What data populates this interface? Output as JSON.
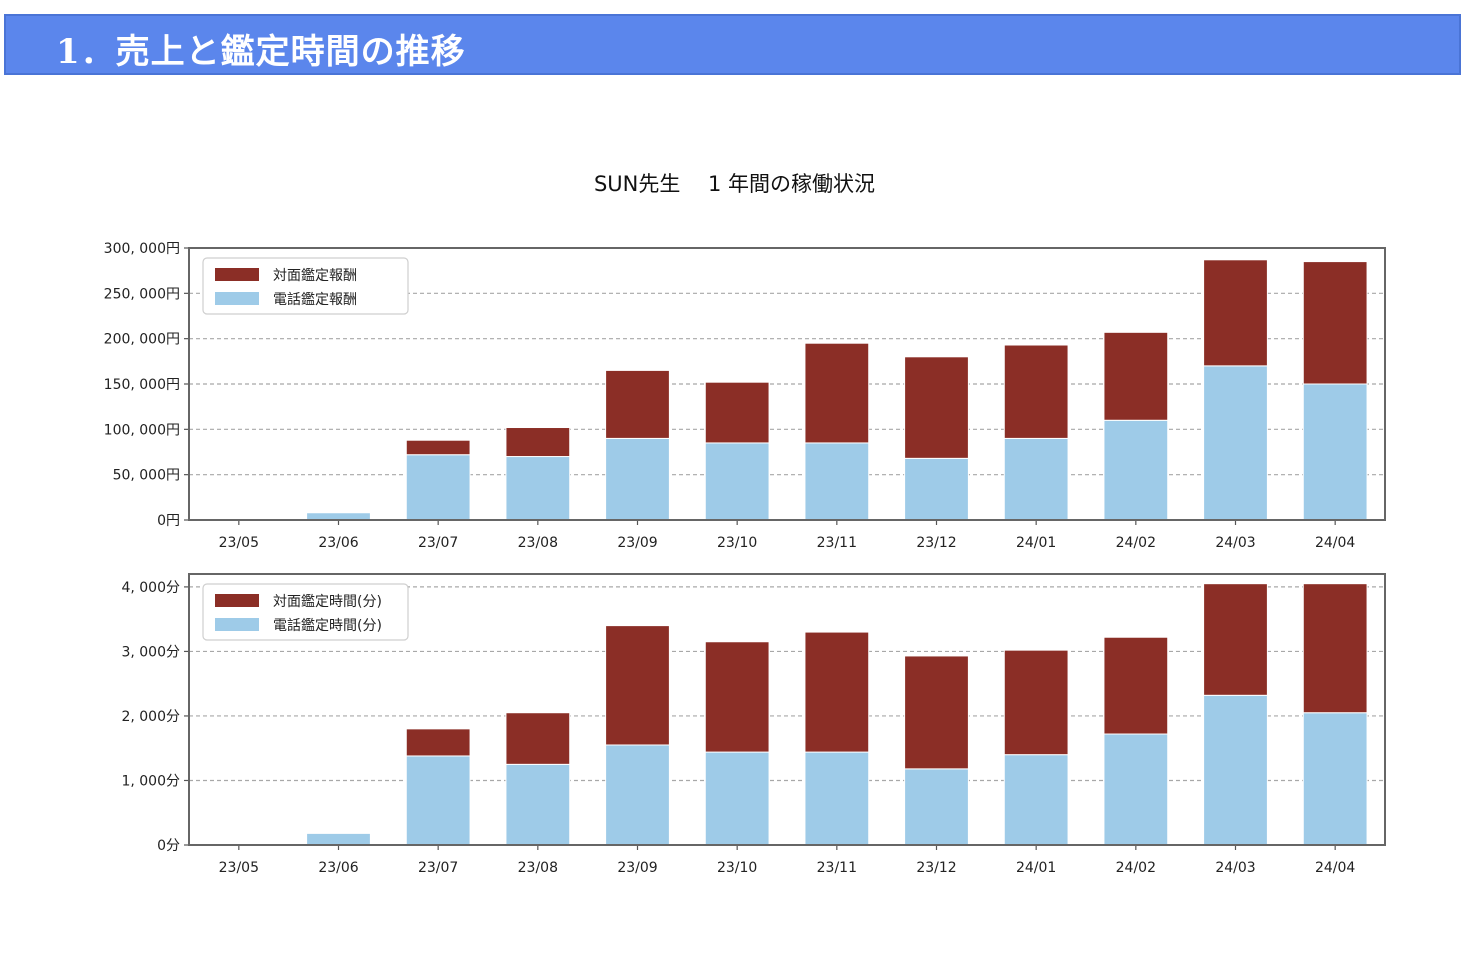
{
  "header": {
    "title": "1．売上と鑑定時間の推移"
  },
  "figure": {
    "title": "SUN先生　 1 年間の稼働状況"
  },
  "colors": {
    "face": "#8b2e26",
    "phone": "#9ecbe8",
    "banner": "#5b86ec"
  },
  "chart_data": [
    {
      "type": "bar",
      "stacked": true,
      "title": "",
      "xlabel": "",
      "ylabel": "",
      "categories": [
        "23/05",
        "23/06",
        "23/07",
        "23/08",
        "23/09",
        "23/10",
        "23/11",
        "23/12",
        "24/01",
        "24/02",
        "24/03",
        "24/04"
      ],
      "series": [
        {
          "name": "電話鑑定報酬",
          "color": "#9ecbe8",
          "values": [
            0,
            8000,
            72000,
            70000,
            90000,
            85000,
            85000,
            68000,
            90000,
            110000,
            170000,
            150000
          ]
        },
        {
          "name": "対面鑑定報酬",
          "color": "#8b2e26",
          "values": [
            0,
            0,
            16000,
            32000,
            75000,
            67000,
            110000,
            112000,
            103000,
            97000,
            117000,
            135000
          ]
        }
      ],
      "ylim": [
        0,
        300000
      ],
      "yticks": [
        "0円",
        "50, 000円",
        "100, 000円",
        "150, 000円",
        "200, 000円",
        "250, 000円",
        "300, 000円"
      ],
      "ytick_values": [
        0,
        50000,
        100000,
        150000,
        200000,
        250000,
        300000
      ],
      "legend_position": "upper-left",
      "legend_order": [
        "対面鑑定報酬",
        "電話鑑定報酬"
      ],
      "grid": "horizontal-dashed"
    },
    {
      "type": "bar",
      "stacked": true,
      "title": "",
      "xlabel": "",
      "ylabel": "",
      "categories": [
        "23/05",
        "23/06",
        "23/07",
        "23/08",
        "23/09",
        "23/10",
        "23/11",
        "23/12",
        "24/01",
        "24/02",
        "24/03",
        "24/04"
      ],
      "series": [
        {
          "name": "電話鑑定時間(分)",
          "color": "#9ecbe8",
          "values": [
            0,
            180,
            1380,
            1250,
            1550,
            1440,
            1440,
            1180,
            1400,
            1720,
            2320,
            2050
          ]
        },
        {
          "name": "対面鑑定時間(分)",
          "color": "#8b2e26",
          "values": [
            0,
            0,
            420,
            800,
            1850,
            1710,
            1860,
            1750,
            1620,
            1500,
            1730,
            2000
          ]
        }
      ],
      "ylim": [
        0,
        4200
      ],
      "yticks": [
        "0分",
        "1, 000分",
        "2, 000分",
        "3, 000分",
        "4, 000分"
      ],
      "ytick_values": [
        0,
        1000,
        2000,
        3000,
        4000
      ],
      "legend_position": "upper-left",
      "legend_order": [
        "対面鑑定時間(分)",
        "電話鑑定時間(分)"
      ],
      "grid": "horizontal-dashed"
    }
  ]
}
